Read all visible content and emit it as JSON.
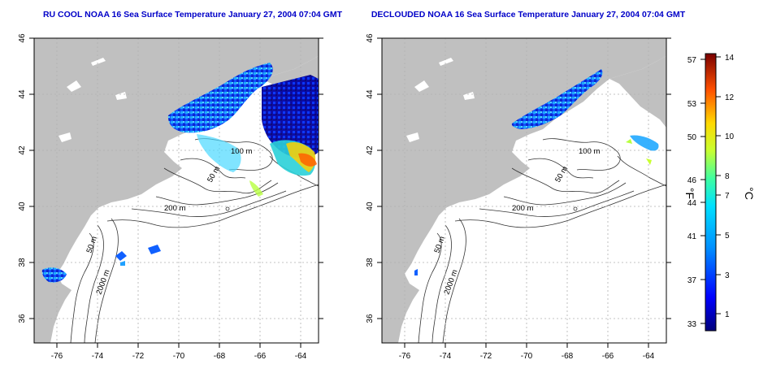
{
  "maps": [
    {
      "title": "RU COOL NOAA 16 Sea Surface Temperature January 27, 2004 07:04 GMT",
      "contours": [
        "100 m",
        "50 m",
        "200 m",
        "2000 m",
        "50 m"
      ]
    },
    {
      "title": "DECLOUDED NOAA 16 Sea Surface Temperature January 27, 2004 07:04 GMT",
      "contours": [
        "100 m",
        "50 m",
        "200 m",
        "2000 m",
        "50 m"
      ]
    }
  ],
  "axes": {
    "lon_ticks": [
      "-76",
      "-74",
      "-72",
      "-70",
      "-68",
      "-66",
      "-64"
    ],
    "lat_ticks": [
      "36",
      "38",
      "40",
      "42",
      "44",
      "46"
    ]
  },
  "colorbar": {
    "f_ticks": [
      "57",
      "53",
      "50",
      "46",
      "44",
      "41",
      "37",
      "33"
    ],
    "c_ticks": [
      "14",
      "12",
      "10",
      "8",
      "7",
      "5",
      "3",
      "1"
    ],
    "f_label": "°F",
    "c_label": "°C"
  },
  "colors": {
    "land": "#c0c0c0",
    "contour": "#333333",
    "grid": "#b0b0b0",
    "title": "#0000c8"
  }
}
